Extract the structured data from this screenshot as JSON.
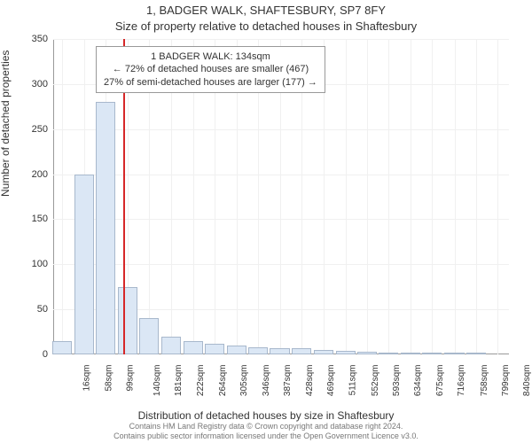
{
  "titles": {
    "line1": "1, BADGER WALK, SHAFTESBURY, SP7 8FY",
    "line2": "Size of property relative to detached houses in Shaftesbury"
  },
  "chart": {
    "type": "histogram",
    "bar_fill": "#dbe7f5",
    "bar_border": "#a8b8cc",
    "grid_color": "#f0f0f0",
    "axis_color": "#999999",
    "background_color": "#ffffff",
    "marker_color": "#d62728",
    "marker_value": 134,
    "ylabel": "Number of detached properties",
    "xlabel": "Distribution of detached houses by size in Shaftesbury",
    "label_fontsize": 12,
    "tick_fontsize": 11,
    "ylim": [
      0,
      350
    ],
    "ytick_step": 50,
    "xlim": [
      0,
      861
    ],
    "xticks": [
      16,
      58,
      99,
      140,
      181,
      222,
      264,
      305,
      346,
      387,
      428,
      469,
      511,
      552,
      593,
      634,
      675,
      716,
      758,
      799,
      840
    ],
    "xtick_suffix": "sqm",
    "bar_xstep": 41,
    "values": [
      15,
      200,
      280,
      75,
      40,
      20,
      15,
      12,
      10,
      8,
      7,
      7,
      5,
      4,
      3,
      2,
      2,
      1,
      1,
      1,
      0
    ],
    "bar_width_ratio": 0.9
  },
  "infobox": {
    "line1": "1 BADGER WALK: 134sqm",
    "line2": "← 72% of detached houses are smaller (467)",
    "line3": "27% of semi-detached houses are larger (177) →"
  },
  "footer": {
    "line1": "Contains HM Land Registry data © Crown copyright and database right 2024.",
    "line2": "Contains public sector information licensed under the Open Government Licence v3.0."
  }
}
